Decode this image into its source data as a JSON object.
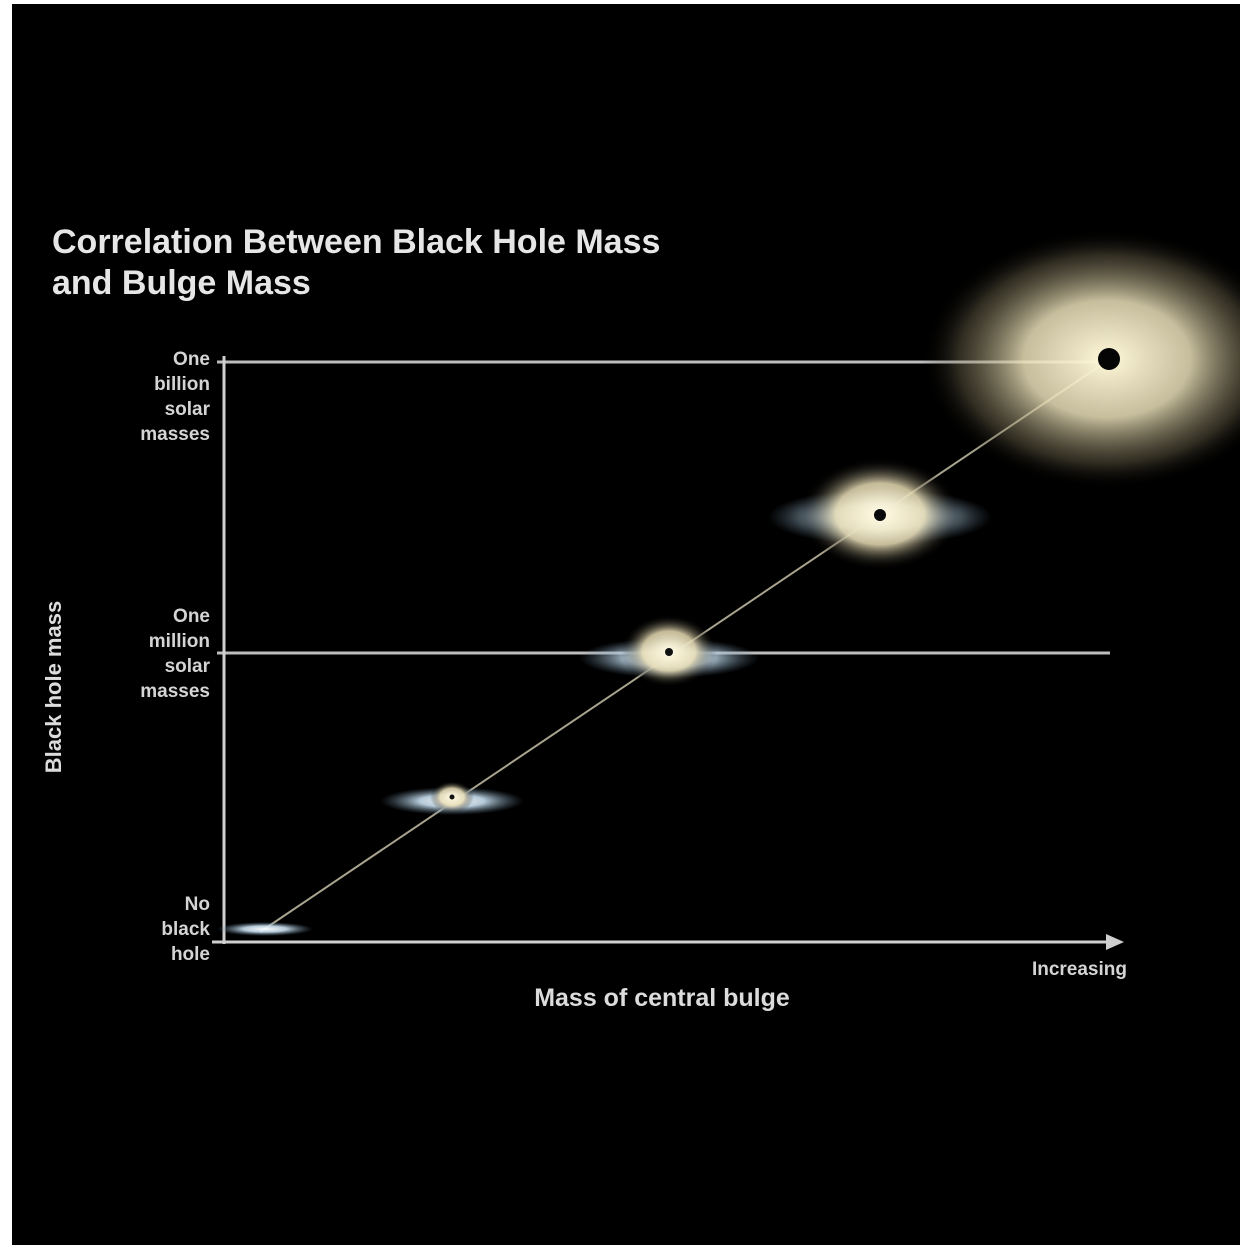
{
  "title_line1": "Correlation Between Black Hole Mass",
  "title_line2": "and Bulge Mass",
  "y_axis": {
    "title": "Black hole mass",
    "labels": [
      {
        "lines": [
          "One",
          "billion",
          "solar",
          "masses"
        ]
      },
      {
        "lines": [
          "One",
          "million",
          "solar",
          "masses"
        ]
      },
      {
        "lines": [
          "No",
          "black",
          "hole"
        ]
      }
    ]
  },
  "x_axis": {
    "title": "Mass of central bulge",
    "end_label": "Increasing"
  },
  "colors": {
    "background": "#000000",
    "axis": "#cfcfcf",
    "text": "#dcdcdc",
    "bulge_glow": "#efe8c8",
    "disk": "#bcd6ea"
  }
}
